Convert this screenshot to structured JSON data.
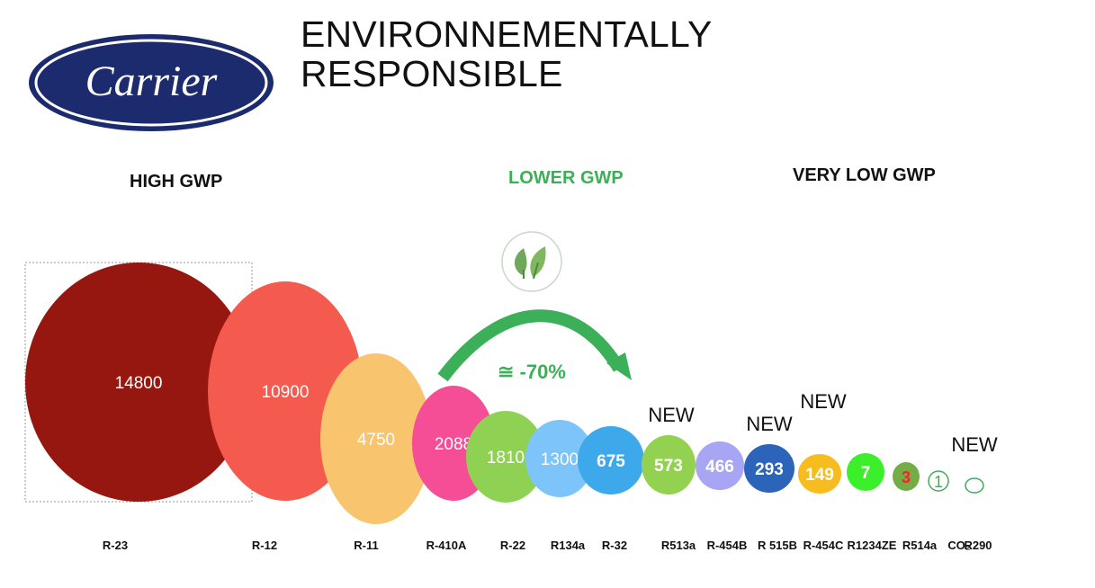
{
  "header": {
    "logo_text": "Carrier",
    "title_line1": "ENVIRONNEMENTALLY",
    "title_line2": "RESPONSIBLE"
  },
  "groups": {
    "high": "HIGH GWP",
    "lower": "LOWER GWP",
    "very_low": "VERY LOW GWP"
  },
  "arrow": {
    "label": "≅  -70%",
    "icon": "leaf-icon",
    "color": "#3cb058"
  },
  "colors": {
    "brand_navy": "#1c2a6e",
    "lower_gwp_green": "#3cb058"
  },
  "chart_data": {
    "type": "bubble",
    "title": "",
    "points": [
      {
        "label": "R-23",
        "value": 14800,
        "value_text": "14800",
        "color": "#961710",
        "bold": false
      },
      {
        "label": "R-12",
        "value": 10900,
        "value_text": "10900",
        "color": "#f55a4e",
        "bold": false
      },
      {
        "label": "R-11",
        "value": 4750,
        "value_text": "4750",
        "color": "#f9c46e",
        "bold": false
      },
      {
        "label": "R-410A",
        "value": 2088,
        "value_text": "2088",
        "color": "#f54d96",
        "bold": false
      },
      {
        "label": "R-22",
        "value": 1810,
        "value_text": "1810",
        "color": "#8fd253",
        "bold": false
      },
      {
        "label": "R134a",
        "value": 1300,
        "value_text": "1300",
        "color": "#7cc4f9",
        "bold": false
      },
      {
        "label": "R-32",
        "value": 675,
        "value_text": "675",
        "color": "#3ea9ea",
        "bold": true
      },
      {
        "label": "R513a",
        "value": 573,
        "value_text": "573",
        "color": "#92d250",
        "bold": true,
        "tag": "NEW"
      },
      {
        "label": "R-454B",
        "value": 466,
        "value_text": "466",
        "color": "#a7a5f4",
        "bold": true
      },
      {
        "label": "R 515B",
        "value": 293,
        "value_text": "293",
        "color": "#2c64b9",
        "bold": true,
        "tag": "NEW"
      },
      {
        "label": "R-454C",
        "value": 149,
        "value_text": "149",
        "color": "#f7bd20",
        "bold": true,
        "tag": "NEW"
      },
      {
        "label": "R1234ZE",
        "value": 7,
        "value_text": "7",
        "color": "#3bf02a",
        "bold": true
      },
      {
        "label": "R514a",
        "value": 3,
        "value_text": "3",
        "color": "#74ad48",
        "bold": true,
        "text_color": "#ff2020"
      },
      {
        "label": "CO₂",
        "value": 1,
        "value_text": "1",
        "color": "none",
        "outline": "#3cb058",
        "bold": false
      },
      {
        "label": "R290",
        "value": 0,
        "value_text": "",
        "color": "none",
        "outline": "#3cb058",
        "bold": false,
        "tag": "NEW"
      }
    ]
  }
}
